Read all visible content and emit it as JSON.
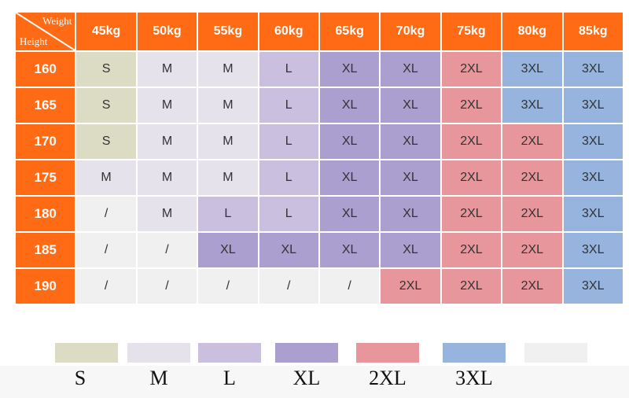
{
  "corner": {
    "weight_label": "Weight",
    "height_label": "Height"
  },
  "weights": [
    "45kg",
    "50kg",
    "55kg",
    "60kg",
    "65kg",
    "70kg",
    "75kg",
    "80kg",
    "85kg"
  ],
  "rows": [
    {
      "height": "160",
      "sizes": [
        "S",
        "M",
        "M",
        "L",
        "XL",
        "XL",
        "2XL",
        "3XL",
        "3XL"
      ]
    },
    {
      "height": "165",
      "sizes": [
        "S",
        "M",
        "M",
        "L",
        "XL",
        "XL",
        "2XL",
        "3XL",
        "3XL"
      ]
    },
    {
      "height": "170",
      "sizes": [
        "S",
        "M",
        "M",
        "L",
        "XL",
        "XL",
        "2XL",
        "2XL",
        "3XL"
      ]
    },
    {
      "height": "175",
      "sizes": [
        "M",
        "M",
        "M",
        "L",
        "XL",
        "XL",
        "2XL",
        "2XL",
        "3XL"
      ]
    },
    {
      "height": "180",
      "sizes": [
        "/",
        "M",
        "L",
        "L",
        "XL",
        "XL",
        "2XL",
        "2XL",
        "3XL"
      ]
    },
    {
      "height": "185",
      "sizes": [
        "/",
        "/",
        "XL",
        "XL",
        "XL",
        "XL",
        "2XL",
        "2XL",
        "3XL"
      ]
    },
    {
      "height": "190",
      "sizes": [
        "/",
        "/",
        "/",
        "/",
        "/",
        "2XL",
        "2XL",
        "2XL",
        "3XL"
      ]
    }
  ],
  "colors": {
    "S": "#dcdcc5",
    "M": "#e6e2ec",
    "L": "#cbbfe0",
    "XL": "#ab9fcf",
    "2XL": "#e7969b",
    "3XL": "#96b4de",
    "/": "#f0f0f0",
    "header": "#ff6a14"
  },
  "legend": [
    {
      "size": "S",
      "label": "S"
    },
    {
      "size": "M",
      "label": "M"
    },
    {
      "size": "L",
      "label": "L"
    },
    {
      "size": "XL",
      "label": "XL"
    },
    {
      "size": "2XL",
      "label": "2XL"
    },
    {
      "size": "3XL",
      "label": "3XL"
    },
    {
      "size": "/",
      "label": ""
    }
  ]
}
